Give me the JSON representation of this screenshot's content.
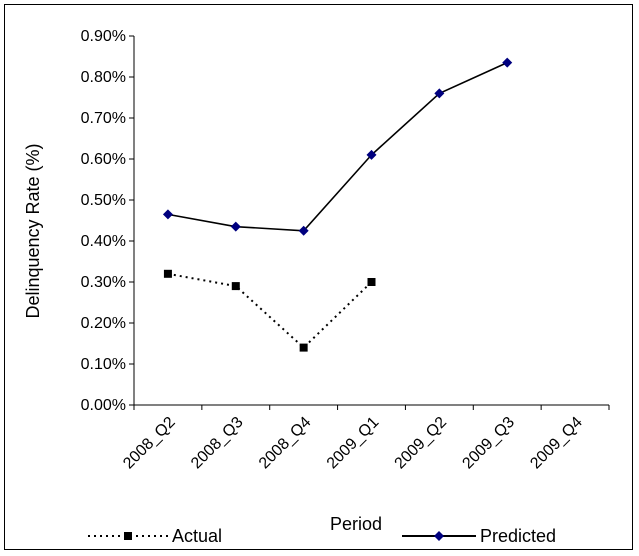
{
  "chart_data": {
    "type": "line",
    "categories": [
      "2008_Q2",
      "2008_Q3",
      "2008_Q4",
      "2009_Q1",
      "2009_Q2",
      "2009_Q3",
      "2009_Q4"
    ],
    "series": [
      {
        "name": "Actual",
        "values": [
          0.0032,
          0.0029,
          0.0014,
          0.003,
          null,
          null,
          null
        ],
        "color": "#000000",
        "line_style": "dotted",
        "marker": "square"
      },
      {
        "name": "Predicted",
        "values": [
          0.00465,
          0.00435,
          0.00425,
          0.0061,
          0.0076,
          0.00835,
          null
        ],
        "color": "#000000",
        "marker_color": "#00007f",
        "line_style": "solid",
        "marker": "diamond"
      }
    ],
    "y_ticks": [
      "0.00%",
      "0.10%",
      "0.20%",
      "0.30%",
      "0.40%",
      "0.50%",
      "0.60%",
      "0.70%",
      "0.80%",
      "0.90%"
    ],
    "ylim": [
      0,
      0.009
    ],
    "xlabel": "Period",
    "ylabel": "Delinquency Rate (%)",
    "grid": false,
    "legend": {
      "position": "bottom",
      "entries": [
        "Actual",
        "Predicted"
      ]
    }
  }
}
